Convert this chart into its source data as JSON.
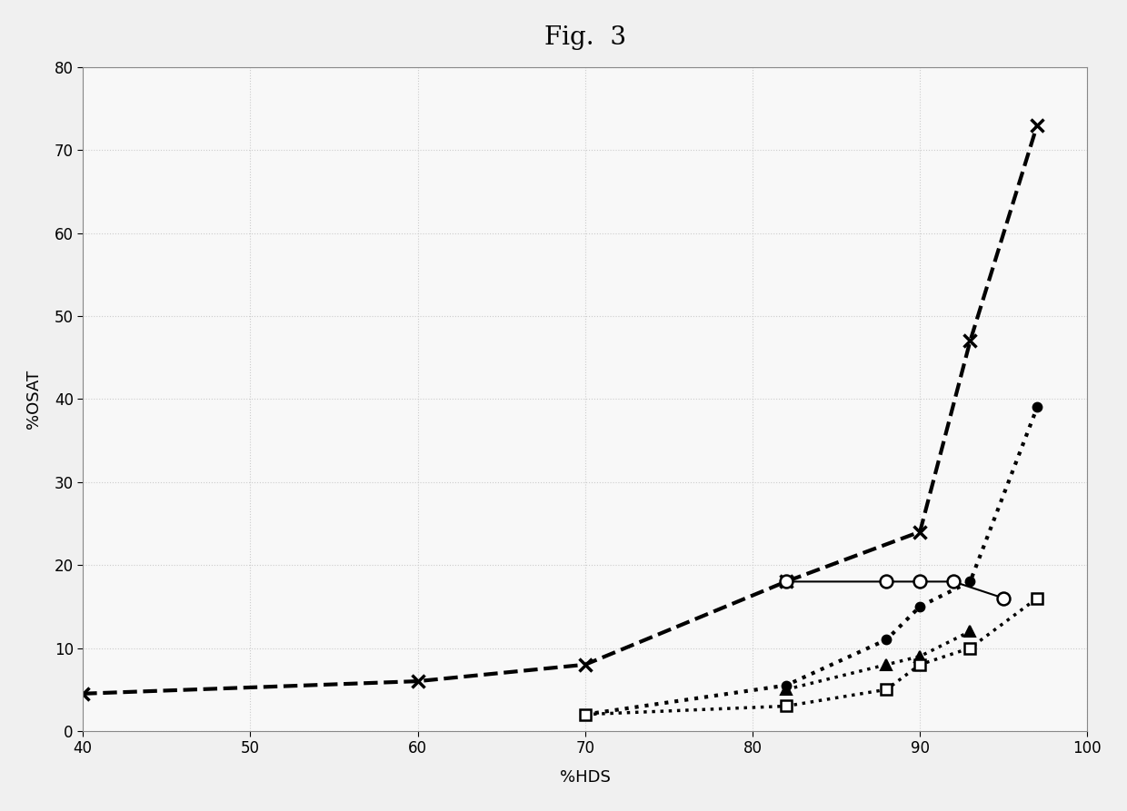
{
  "title": "Fig.  3",
  "xlabel": "%HDS",
  "ylabel": "%OSAT",
  "xlim": [
    40,
    100
  ],
  "ylim": [
    0,
    80
  ],
  "xticks": [
    40,
    50,
    60,
    70,
    80,
    90,
    100
  ],
  "yticks": [
    0,
    10,
    20,
    30,
    40,
    50,
    60,
    70,
    80
  ],
  "series": [
    {
      "name": "dashed_x",
      "x": [
        40,
        60,
        70,
        82,
        90,
        93,
        97
      ],
      "y": [
        4.5,
        6.0,
        8.0,
        18.0,
        24.0,
        47.0,
        73.0
      ],
      "linestyle": "--",
      "linewidth": 3.0,
      "marker": "x",
      "markersize": 10,
      "markeredgewidth": 2.5,
      "markerfacecolor": "black",
      "color": "black"
    },
    {
      "name": "solid_open_circle",
      "x": [
        82,
        88,
        90,
        92,
        95
      ],
      "y": [
        18.0,
        18.0,
        18.0,
        18.0,
        16.0
      ],
      "linestyle": "-",
      "linewidth": 1.5,
      "marker": "o",
      "markersize": 10,
      "markerfacecolor": "white",
      "markeredgewidth": 1.8,
      "color": "black"
    },
    {
      "name": "dotted_filled_circle",
      "x": [
        70,
        82,
        88,
        90,
        93,
        97
      ],
      "y": [
        2.0,
        5.5,
        11.0,
        15.0,
        18.0,
        39.0
      ],
      "linestyle": ":",
      "linewidth": 3.0,
      "marker": "o",
      "markersize": 7,
      "markerfacecolor": "black",
      "markeredgewidth": 1.5,
      "color": "black"
    },
    {
      "name": "dotted_filled_triangle",
      "x": [
        82,
        88,
        90,
        93
      ],
      "y": [
        5.0,
        8.0,
        9.0,
        12.0
      ],
      "linestyle": ":",
      "linewidth": 2.5,
      "marker": "^",
      "markersize": 8,
      "markerfacecolor": "black",
      "markeredgewidth": 1.5,
      "color": "black"
    },
    {
      "name": "dotted_open_square",
      "x": [
        70,
        82,
        88,
        90,
        93,
        97
      ],
      "y": [
        2.0,
        3.0,
        5.0,
        8.0,
        10.0,
        16.0
      ],
      "linestyle": ":",
      "linewidth": 2.5,
      "marker": "s",
      "markersize": 8,
      "markerfacecolor": "white",
      "markeredgewidth": 1.8,
      "color": "black"
    }
  ],
  "background_color": "#f0f0f0",
  "plot_background": "#f8f8f8",
  "grid_color": "#cccccc",
  "title_fontsize": 20,
  "axis_label_fontsize": 13,
  "tick_fontsize": 12
}
